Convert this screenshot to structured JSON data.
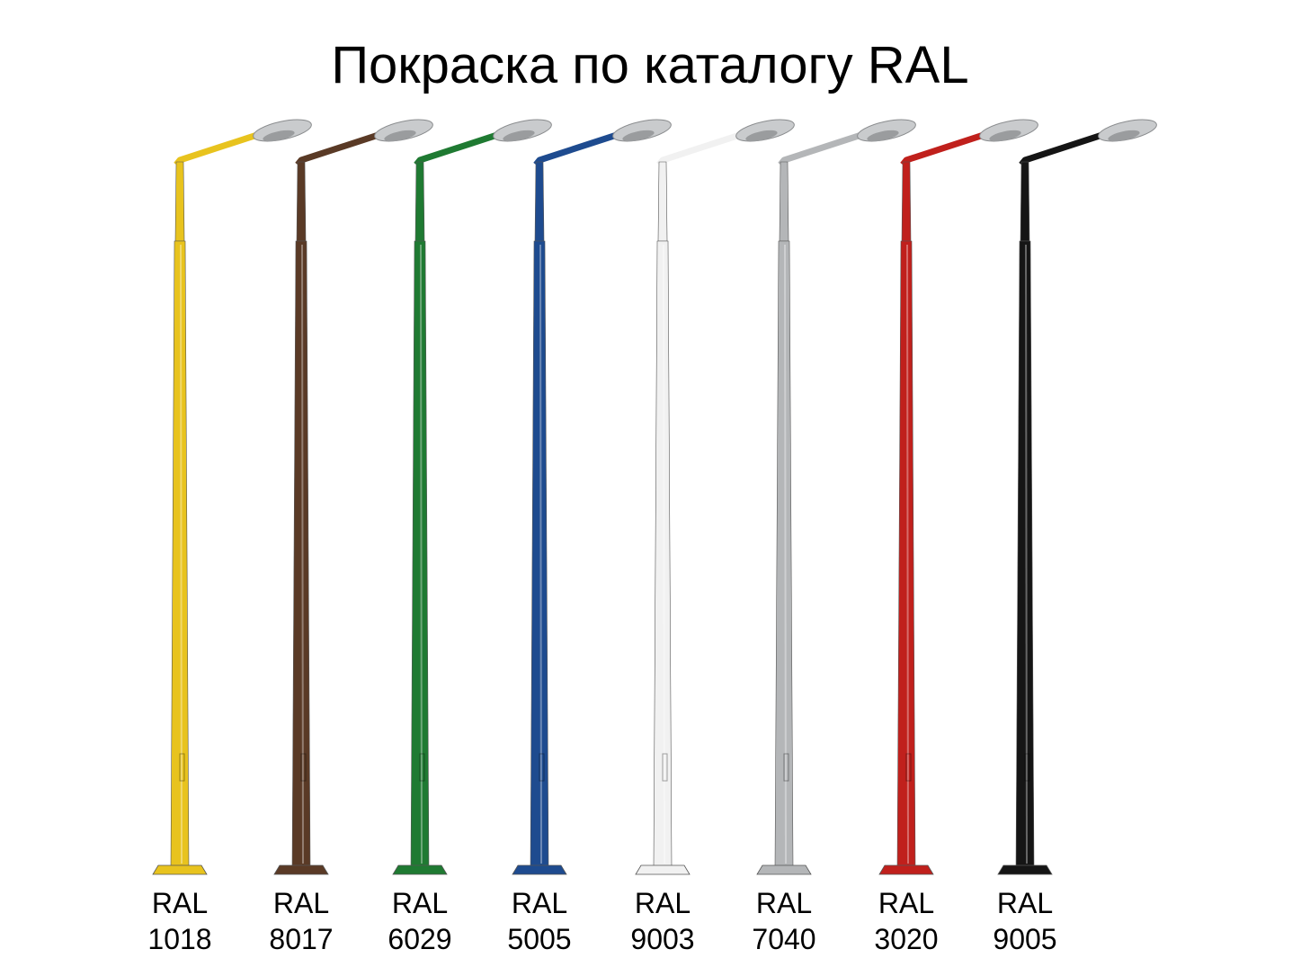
{
  "title": "Покраска по каталогу RAL",
  "items": [
    {
      "lines": [
        "RAL",
        "1018"
      ],
      "color": "#e8c31e"
    },
    {
      "lines": [
        "RAL",
        "8017"
      ],
      "color": "#5a3a26"
    },
    {
      "lines": [
        "RAL",
        "6029"
      ],
      "color": "#1f7a32"
    },
    {
      "lines": [
        "RAL",
        "5005"
      ],
      "color": "#1e4b8f"
    },
    {
      "lines": [
        "RAL",
        "9003"
      ],
      "color": "#f1f1f1"
    },
    {
      "lines": [
        "RAL",
        "7040"
      ],
      "color": "#b4b6b8"
    },
    {
      "lines": [
        "RAL",
        "3020"
      ],
      "color": "#c0201c"
    },
    {
      "lines": [
        "RAL",
        "9005"
      ],
      "color": "#151515"
    }
  ]
}
